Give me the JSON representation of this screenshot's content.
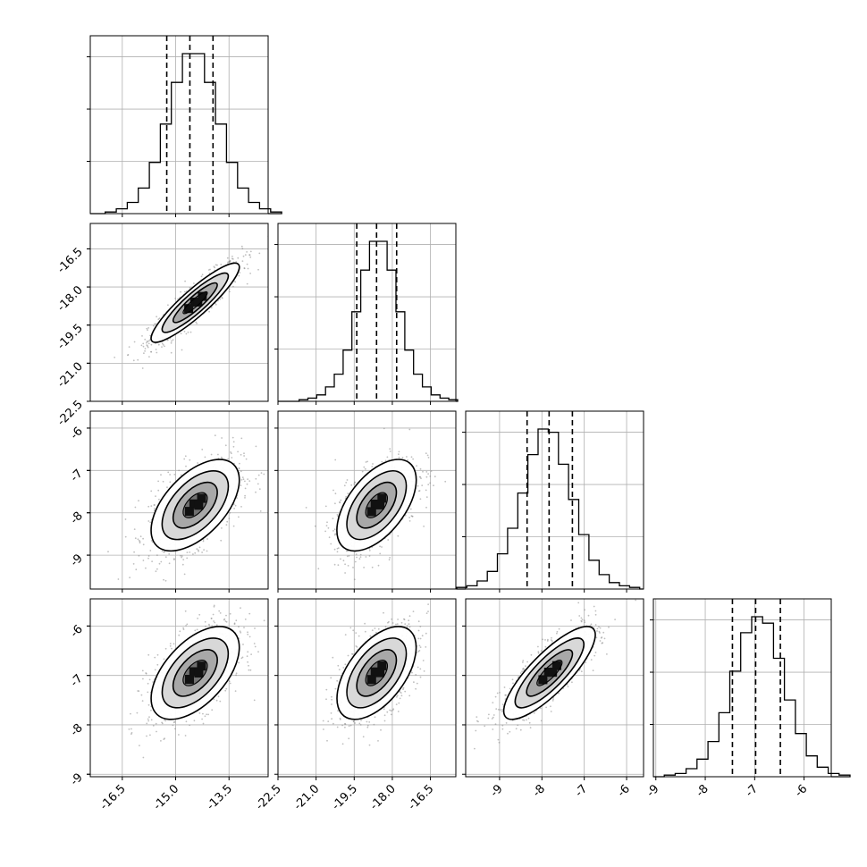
{
  "chart_data": {
    "type": "corner",
    "dimensions": 4,
    "grid": true,
    "axes_ranges": [
      [
        -17.4,
        -12.4
      ],
      [
        -22.5,
        -15.5
      ],
      [
        -9.8,
        -5.6
      ],
      [
        -9.05,
        -5.45
      ]
    ],
    "x_ticks": [
      [
        "-16.5",
        "-15.0",
        "-13.5"
      ],
      [
        "-22.5",
        "-21.0",
        "-19.5",
        "-18.0",
        "-16.5"
      ],
      [
        "-9",
        "-8",
        "-7",
        "-6"
      ],
      [
        "-9",
        "-8",
        "-7",
        "-6"
      ]
    ],
    "y_ticks": [
      [],
      [
        "-16.5",
        "-18.0",
        "-19.5",
        "-21.0",
        "-22.5"
      ],
      [
        "-6",
        "-7",
        "-8",
        "-9"
      ],
      [
        "-6",
        "-7",
        "-8",
        "-9"
      ]
    ],
    "marginals": [
      {
        "quantiles": [
          -15.25,
          -14.6,
          -13.95
        ],
        "mode": -14.5,
        "sigma": 0.62,
        "counts": [
          1,
          3,
          7,
          16,
          32,
          56,
          82,
          100,
          100,
          82,
          56,
          32,
          16,
          7,
          3,
          1
        ]
      },
      {
        "quantiles": [
          -19.4,
          -18.62,
          -17.83
        ],
        "mode": -18.55,
        "sigma": 0.78,
        "counts": [
          1,
          2,
          4,
          9,
          17,
          32,
          56,
          82,
          100,
          100,
          82,
          56,
          32,
          17,
          9,
          4,
          2,
          1
        ]
      },
      {
        "quantiles": [
          -8.35,
          -7.83,
          -7.28
        ],
        "mode": -7.85,
        "sigma": 0.54,
        "counts": [
          1,
          2,
          5,
          11,
          22,
          38,
          60,
          84,
          100,
          98,
          78,
          56,
          34,
          18,
          9,
          4,
          2,
          1
        ]
      },
      {
        "quantiles": [
          -7.45,
          -6.98,
          -6.48
        ],
        "mode": -6.95,
        "sigma": 0.47,
        "counts": [
          1,
          2,
          5,
          11,
          22,
          40,
          66,
          90,
          100,
          96,
          74,
          48,
          27,
          13,
          6,
          2,
          1
        ]
      }
    ],
    "pairs": [
      {
        "x_dim": 0,
        "y_dim": 1,
        "center": [
          -14.45,
          -18.62
        ],
        "rho": 0.9
      },
      {
        "x_dim": 0,
        "y_dim": 2,
        "center": [
          -14.45,
          -7.82
        ],
        "rho": 0.55
      },
      {
        "x_dim": 1,
        "y_dim": 2,
        "center": [
          -18.62,
          -7.82
        ],
        "rho": 0.55
      },
      {
        "x_dim": 0,
        "y_dim": 3,
        "center": [
          -14.45,
          -6.95
        ],
        "rho": 0.55
      },
      {
        "x_dim": 1,
        "y_dim": 3,
        "center": [
          -18.62,
          -6.95
        ],
        "rho": 0.55
      },
      {
        "x_dim": 2,
        "y_dim": 3,
        "center": [
          -7.82,
          -6.95
        ],
        "rho": 0.82
      }
    ]
  }
}
